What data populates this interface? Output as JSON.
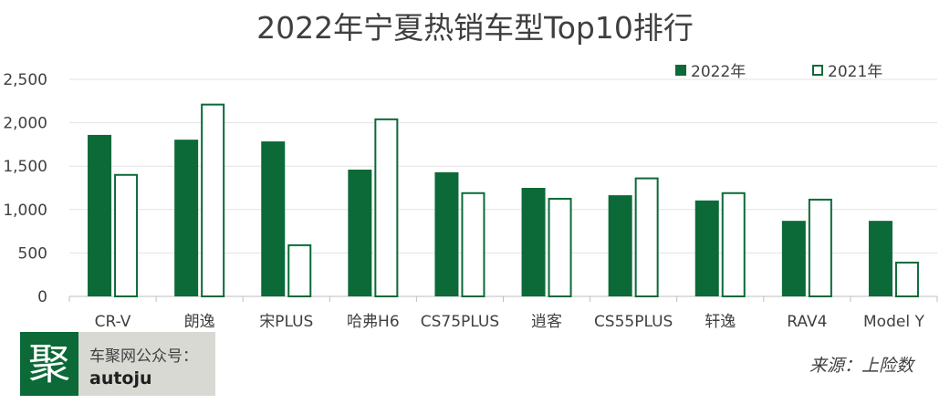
{
  "chart_data": {
    "type": "bar",
    "title": "2022年宁夏热销车型Top10排行",
    "categories": [
      "CR-V",
      "朗逸",
      "宋PLUS",
      "哈弗H6",
      "CS75PLUS",
      "逍客",
      "CS55PLUS",
      "轩逸",
      "RAV4",
      "Model Y"
    ],
    "series": [
      {
        "name": "2022年",
        "values": [
          1860,
          1805,
          1785,
          1460,
          1430,
          1250,
          1165,
          1105,
          870,
          870
        ],
        "color": "#0b6a37",
        "fill": "solid"
      },
      {
        "name": "2021年",
        "values": [
          1410,
          2220,
          600,
          2050,
          1200,
          1135,
          1370,
          1200,
          1125,
          400
        ],
        "color": "#0b6a37",
        "fill": "outline"
      }
    ],
    "ylim": [
      0,
      2500
    ],
    "yticks": [
      0,
      500,
      1000,
      1500,
      2000,
      2500
    ],
    "ytick_labels": [
      "0",
      "500",
      "1,000",
      "1,500",
      "2,000",
      "2,500"
    ],
    "xlabel": "",
    "ylabel": "",
    "grid": true,
    "legend_position": "top-right"
  },
  "brand": {
    "logo_char": "聚",
    "line1": "车聚网公众号：",
    "line2": "autoju"
  },
  "source": "来源：上险数"
}
